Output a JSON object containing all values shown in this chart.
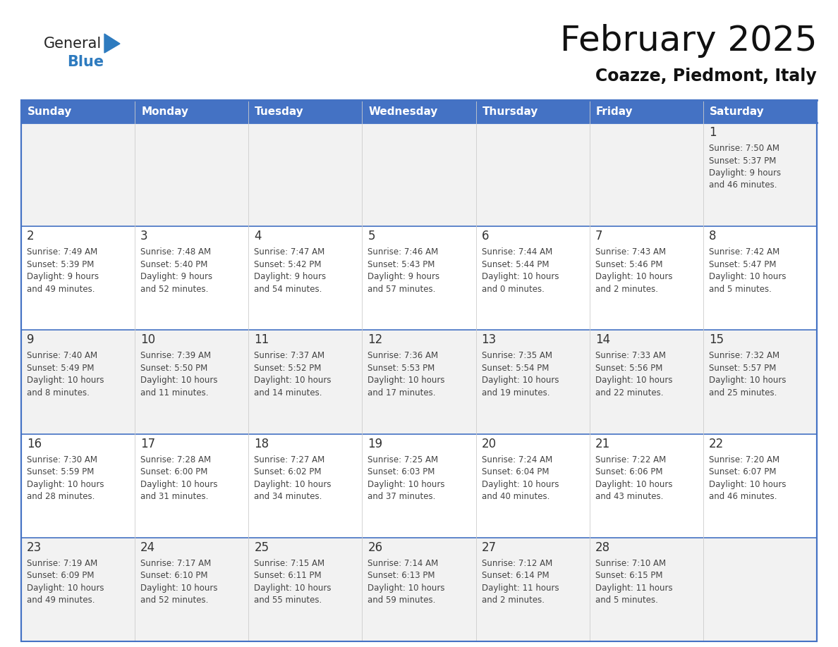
{
  "title": "February 2025",
  "subtitle": "Coazze, Piedmont, Italy",
  "days_of_week": [
    "Sunday",
    "Monday",
    "Tuesday",
    "Wednesday",
    "Thursday",
    "Friday",
    "Saturday"
  ],
  "header_bg": "#4472C4",
  "header_text_color": "#FFFFFF",
  "cell_bg_white": "#FFFFFF",
  "cell_bg_grey": "#F2F2F2",
  "row_divider_color": "#4472C4",
  "col_divider_color": "#CCCCCC",
  "outer_border_color": "#4472C4",
  "text_color": "#444444",
  "day_num_color": "#333333",
  "title_color": "#111111",
  "subtitle_color": "#111111",
  "logo_general_color": "#222222",
  "logo_blue_color": "#2E7BBF",
  "weeks": [
    [
      {
        "day": null,
        "info": null
      },
      {
        "day": null,
        "info": null
      },
      {
        "day": null,
        "info": null
      },
      {
        "day": null,
        "info": null
      },
      {
        "day": null,
        "info": null
      },
      {
        "day": null,
        "info": null
      },
      {
        "day": 1,
        "info": "Sunrise: 7:50 AM\nSunset: 5:37 PM\nDaylight: 9 hours\nand 46 minutes."
      }
    ],
    [
      {
        "day": 2,
        "info": "Sunrise: 7:49 AM\nSunset: 5:39 PM\nDaylight: 9 hours\nand 49 minutes."
      },
      {
        "day": 3,
        "info": "Sunrise: 7:48 AM\nSunset: 5:40 PM\nDaylight: 9 hours\nand 52 minutes."
      },
      {
        "day": 4,
        "info": "Sunrise: 7:47 AM\nSunset: 5:42 PM\nDaylight: 9 hours\nand 54 minutes."
      },
      {
        "day": 5,
        "info": "Sunrise: 7:46 AM\nSunset: 5:43 PM\nDaylight: 9 hours\nand 57 minutes."
      },
      {
        "day": 6,
        "info": "Sunrise: 7:44 AM\nSunset: 5:44 PM\nDaylight: 10 hours\nand 0 minutes."
      },
      {
        "day": 7,
        "info": "Sunrise: 7:43 AM\nSunset: 5:46 PM\nDaylight: 10 hours\nand 2 minutes."
      },
      {
        "day": 8,
        "info": "Sunrise: 7:42 AM\nSunset: 5:47 PM\nDaylight: 10 hours\nand 5 minutes."
      }
    ],
    [
      {
        "day": 9,
        "info": "Sunrise: 7:40 AM\nSunset: 5:49 PM\nDaylight: 10 hours\nand 8 minutes."
      },
      {
        "day": 10,
        "info": "Sunrise: 7:39 AM\nSunset: 5:50 PM\nDaylight: 10 hours\nand 11 minutes."
      },
      {
        "day": 11,
        "info": "Sunrise: 7:37 AM\nSunset: 5:52 PM\nDaylight: 10 hours\nand 14 minutes."
      },
      {
        "day": 12,
        "info": "Sunrise: 7:36 AM\nSunset: 5:53 PM\nDaylight: 10 hours\nand 17 minutes."
      },
      {
        "day": 13,
        "info": "Sunrise: 7:35 AM\nSunset: 5:54 PM\nDaylight: 10 hours\nand 19 minutes."
      },
      {
        "day": 14,
        "info": "Sunrise: 7:33 AM\nSunset: 5:56 PM\nDaylight: 10 hours\nand 22 minutes."
      },
      {
        "day": 15,
        "info": "Sunrise: 7:32 AM\nSunset: 5:57 PM\nDaylight: 10 hours\nand 25 minutes."
      }
    ],
    [
      {
        "day": 16,
        "info": "Sunrise: 7:30 AM\nSunset: 5:59 PM\nDaylight: 10 hours\nand 28 minutes."
      },
      {
        "day": 17,
        "info": "Sunrise: 7:28 AM\nSunset: 6:00 PM\nDaylight: 10 hours\nand 31 minutes."
      },
      {
        "day": 18,
        "info": "Sunrise: 7:27 AM\nSunset: 6:02 PM\nDaylight: 10 hours\nand 34 minutes."
      },
      {
        "day": 19,
        "info": "Sunrise: 7:25 AM\nSunset: 6:03 PM\nDaylight: 10 hours\nand 37 minutes."
      },
      {
        "day": 20,
        "info": "Sunrise: 7:24 AM\nSunset: 6:04 PM\nDaylight: 10 hours\nand 40 minutes."
      },
      {
        "day": 21,
        "info": "Sunrise: 7:22 AM\nSunset: 6:06 PM\nDaylight: 10 hours\nand 43 minutes."
      },
      {
        "day": 22,
        "info": "Sunrise: 7:20 AM\nSunset: 6:07 PM\nDaylight: 10 hours\nand 46 minutes."
      }
    ],
    [
      {
        "day": 23,
        "info": "Sunrise: 7:19 AM\nSunset: 6:09 PM\nDaylight: 10 hours\nand 49 minutes."
      },
      {
        "day": 24,
        "info": "Sunrise: 7:17 AM\nSunset: 6:10 PM\nDaylight: 10 hours\nand 52 minutes."
      },
      {
        "day": 25,
        "info": "Sunrise: 7:15 AM\nSunset: 6:11 PM\nDaylight: 10 hours\nand 55 minutes."
      },
      {
        "day": 26,
        "info": "Sunrise: 7:14 AM\nSunset: 6:13 PM\nDaylight: 10 hours\nand 59 minutes."
      },
      {
        "day": 27,
        "info": "Sunrise: 7:12 AM\nSunset: 6:14 PM\nDaylight: 11 hours\nand 2 minutes."
      },
      {
        "day": 28,
        "info": "Sunrise: 7:10 AM\nSunset: 6:15 PM\nDaylight: 11 hours\nand 5 minutes."
      },
      {
        "day": null,
        "info": null
      }
    ]
  ]
}
